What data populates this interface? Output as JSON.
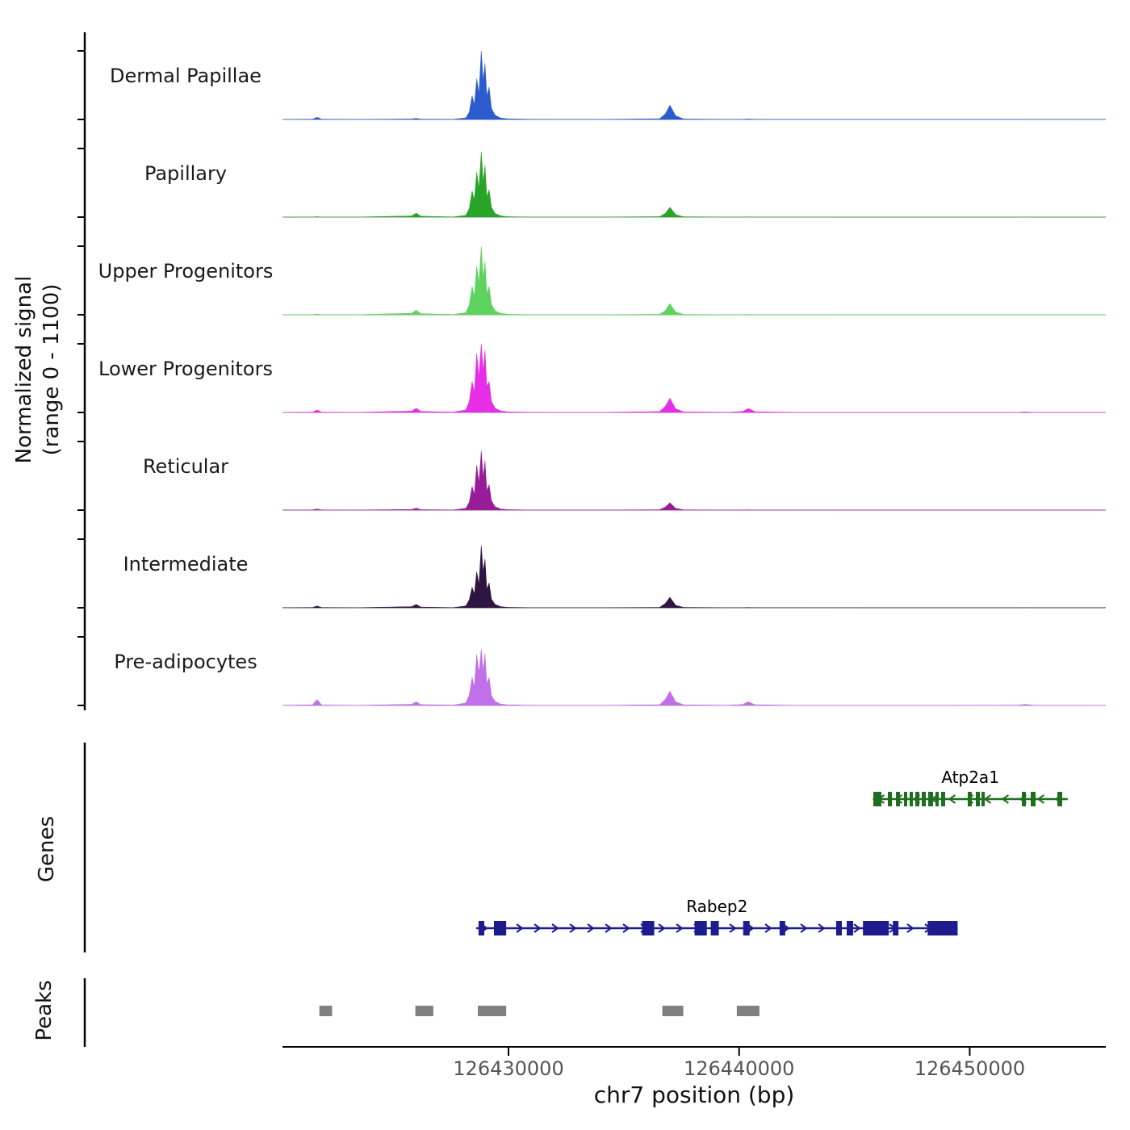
{
  "y_axis": {
    "label_line1": "Normalized signal",
    "label_line2": "(range 0 - 1100)"
  },
  "x_axis": {
    "title": "chr7 position (bp)",
    "ticks": [
      {
        "bp": 126430000,
        "label": "126430000"
      },
      {
        "bp": 126440000,
        "label": "126440000"
      },
      {
        "bp": 126450000,
        "label": "126450000"
      }
    ]
  },
  "sections": {
    "genes_label": "Genes",
    "peaks_label": "Peaks"
  },
  "chart_data": {
    "type": "area",
    "title": "",
    "xlabel": "chr7 position (bp)",
    "ylabel": "Normalized signal (range 0 - 1100)",
    "x_range_bp": [
      126420200,
      126455900
    ],
    "signal_range": [
      0,
      1100
    ],
    "x_bp": [
      126420200,
      126421500,
      126421700,
      126421900,
      126423500,
      126425800,
      126426000,
      126426200,
      126427600,
      126428150,
      126428300,
      126428420,
      126428520,
      126428620,
      126428720,
      126428820,
      126428900,
      126428980,
      126429060,
      126429160,
      126429260,
      126429420,
      126429650,
      126429950,
      126431000,
      126434000,
      126436550,
      126436800,
      126437000,
      126437250,
      126437600,
      126439500,
      126440150,
      126440400,
      126440700,
      126442500,
      126446500,
      126452100,
      126452400,
      126452800,
      126455900
    ],
    "series": [
      {
        "name": "Dermal Papillae",
        "color": "#2b5bcc",
        "values": [
          2,
          5,
          35,
          5,
          2,
          8,
          20,
          6,
          4,
          25,
          120,
          380,
          240,
          650,
          420,
          1100,
          620,
          900,
          380,
          520,
          180,
          70,
          25,
          10,
          4,
          3,
          12,
          90,
          230,
          60,
          8,
          3,
          4,
          8,
          4,
          2,
          2,
          2,
          4,
          2,
          1
        ]
      },
      {
        "name": "Papillary",
        "color": "#28a428",
        "values": [
          1,
          3,
          8,
          3,
          2,
          20,
          65,
          15,
          4,
          30,
          140,
          420,
          280,
          720,
          470,
          1050,
          560,
          830,
          330,
          440,
          160,
          60,
          22,
          8,
          3,
          2,
          8,
          60,
          160,
          40,
          6,
          2,
          3,
          5,
          3,
          2,
          1,
          1,
          2,
          1,
          1
        ]
      },
      {
        "name": "Upper Progenitors",
        "color": "#5fd35f",
        "values": [
          1,
          3,
          10,
          3,
          2,
          25,
          75,
          18,
          5,
          35,
          160,
          460,
          300,
          780,
          520,
          1100,
          600,
          860,
          340,
          460,
          170,
          65,
          24,
          9,
          3,
          2,
          8,
          70,
          180,
          45,
          7,
          2,
          3,
          6,
          3,
          2,
          1,
          1,
          2,
          1,
          1
        ]
      },
      {
        "name": "Lower Progenitors",
        "color": "#e62ee6",
        "values": [
          2,
          6,
          40,
          6,
          2,
          22,
          70,
          16,
          6,
          40,
          180,
          500,
          330,
          950,
          580,
          1100,
          680,
          1000,
          420,
          500,
          180,
          70,
          26,
          10,
          4,
          3,
          14,
          100,
          230,
          60,
          10,
          4,
          15,
          65,
          12,
          3,
          2,
          3,
          10,
          3,
          1
        ]
      },
      {
        "name": "Reticular",
        "color": "#981c97",
        "values": [
          1,
          4,
          18,
          4,
          2,
          10,
          32,
          8,
          4,
          28,
          130,
          380,
          250,
          720,
          440,
          950,
          530,
          790,
          310,
          410,
          150,
          55,
          20,
          8,
          3,
          2,
          6,
          50,
          120,
          30,
          5,
          2,
          2,
          5,
          2,
          2,
          1,
          1,
          2,
          1,
          1
        ]
      },
      {
        "name": "Intermediate",
        "color": "#2e1440",
        "values": [
          2,
          5,
          30,
          5,
          2,
          18,
          55,
          12,
          4,
          30,
          130,
          330,
          220,
          580,
          380,
          1000,
          580,
          780,
          300,
          400,
          140,
          55,
          20,
          8,
          3,
          2,
          6,
          70,
          170,
          40,
          6,
          2,
          3,
          5,
          3,
          2,
          1,
          1,
          2,
          1,
          1
        ]
      },
      {
        "name": "Pre-adipocytes",
        "color": "#c070e8",
        "values": [
          2,
          10,
          95,
          8,
          2,
          20,
          60,
          14,
          6,
          40,
          170,
          450,
          300,
          820,
          520,
          900,
          560,
          830,
          350,
          450,
          160,
          65,
          24,
          10,
          4,
          3,
          12,
          100,
          230,
          60,
          10,
          4,
          15,
          60,
          12,
          3,
          2,
          5,
          18,
          4,
          1
        ]
      }
    ],
    "genes": [
      {
        "name": "Atp2a1",
        "color": "#1f6e1f",
        "strand": "-",
        "start_bp": 126445800,
        "end_bp": 126454250,
        "exons": [
          [
            126445820,
            126446170
          ],
          [
            126446450,
            126446625
          ],
          [
            126446800,
            126446975
          ],
          [
            126447150,
            126447290
          ],
          [
            126447395,
            126447535
          ],
          [
            126447640,
            126447815
          ],
          [
            126447920,
            126448095
          ],
          [
            126448200,
            126448410
          ],
          [
            126448515,
            126448655
          ],
          [
            126448760,
            126448935
          ],
          [
            126449915,
            126450090
          ],
          [
            126450265,
            126450440
          ],
          [
            126450510,
            126450650
          ],
          [
            126452260,
            126452435
          ],
          [
            126452645,
            126452855
          ],
          [
            126453800,
            126454010
          ]
        ]
      },
      {
        "name": "Rabep2",
        "color": "#1c1c8f",
        "strand": "+",
        "start_bp": 126428600,
        "end_bp": 126449480,
        "exons": [
          [
            126428700,
            126428950
          ],
          [
            126429370,
            126429900
          ],
          [
            126435790,
            126436320
          ],
          [
            126438070,
            126438600
          ],
          [
            126438770,
            126439120
          ],
          [
            126440175,
            126440455
          ],
          [
            126441755,
            126442000
          ],
          [
            126444210,
            126444455
          ],
          [
            126444665,
            126444945
          ],
          [
            126445370,
            126446490
          ],
          [
            126446665,
            126446910
          ],
          [
            126448175,
            126449475
          ]
        ]
      }
    ],
    "peaks": {
      "color": "#808080",
      "regions": [
        [
          126421800,
          126422350
        ],
        [
          126425960,
          126426740
        ],
        [
          126428670,
          126429900
        ],
        [
          126436670,
          126437580
        ],
        [
          126439900,
          126440880
        ]
      ]
    }
  }
}
